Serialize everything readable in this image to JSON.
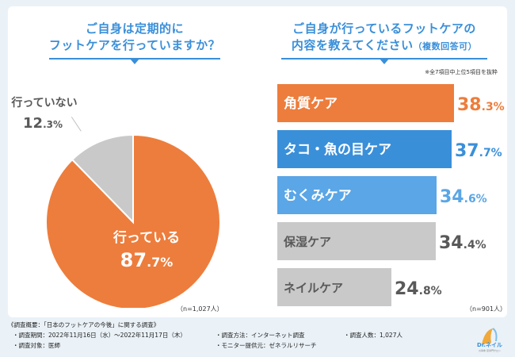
{
  "left": {
    "title_line1": "ご自身は定期的に",
    "title_line2": "フットケアを行っていますか？",
    "n": "（n=1,027人）"
  },
  "right": {
    "title_line1": "ご自身が行っているフットケアの",
    "title_line2": "内容を教えてください",
    "title_suffix": "（複数回答可）",
    "note": "※全7項目中上位5項目を抜粋",
    "n": "（n=901人）"
  },
  "chart_data": [
    {
      "type": "pie",
      "title": "ご自身は定期的にフットケアを行っていますか？",
      "slices": [
        {
          "name": "行っている",
          "value": 87.7,
          "label": "87.7%",
          "color": "#ed7d3c"
        },
        {
          "name": "行っていない",
          "value": 12.3,
          "label": "12.3%",
          "color": "#c9c9c9"
        }
      ]
    },
    {
      "type": "bar",
      "orientation": "horizontal",
      "title": "ご自身が行っているフットケアの内容を教えてください（複数回答可）",
      "categories": [
        "角質ケア",
        "タコ・魚の目ケア",
        "むくみケア",
        "保湿ケア",
        "ネイルケア"
      ],
      "values": [
        38.3,
        37.7,
        34.6,
        34.4,
        24.8
      ],
      "labels": [
        "38.3%",
        "37.7%",
        "34.6%",
        "34.4%",
        "24.8%"
      ],
      "colors": [
        "#ed7d3c",
        "#3a8fd9",
        "#5aa6e6",
        "#c9c9c9",
        "#c9c9c9"
      ],
      "value_colors": [
        "#ed7d3c",
        "#3a8fd9",
        "#5aa6e6",
        "#595959",
        "#595959"
      ],
      "xlim": [
        0,
        38.3
      ]
    }
  ],
  "footer": {
    "heading": "《調査概要：「日本のフットケアの今後」に関する調査》",
    "period": "・調査期間：2022年11月16日（水）～2022年11月17日（木）",
    "method": "・調査方法：インターネット調査",
    "count": "・調査人数：1,027人",
    "target": "・調査対象：医師",
    "provider": "・モニター提供元：ゼネラルリサーチ"
  },
  "logo": {
    "text": "Dr.ネイル",
    "sub": "爪革命 足専門サロン"
  },
  "colors": {
    "accent_blue": "#3a8fd9",
    "orange": "#ed7d3c",
    "gray": "#c9c9c9",
    "bg": "#eaf2f8"
  }
}
